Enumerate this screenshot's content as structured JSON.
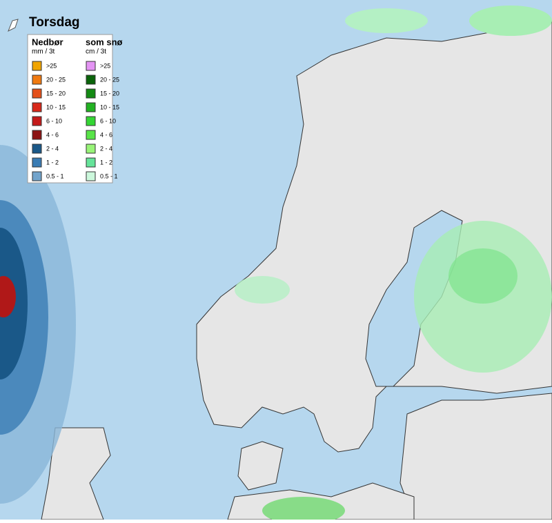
{
  "title": "Torsdag",
  "legend": {
    "columns": [
      {
        "heading": "Nedbør",
        "unit": "mm / 3t",
        "items": [
          {
            "label": ">25",
            "color": "#f0a400"
          },
          {
            "label": "20 - 25",
            "color": "#f07a10"
          },
          {
            "label": "15 - 20",
            "color": "#e4501a"
          },
          {
            "label": "10 - 15",
            "color": "#d8281a"
          },
          {
            "label": "6 - 10",
            "color": "#c41a1a"
          },
          {
            "label": "4 - 6",
            "color": "#8c1414"
          },
          {
            "label": "2 - 4",
            "color": "#1a5888"
          },
          {
            "label": "1 - 2",
            "color": "#3a7cb4"
          },
          {
            "label": "0.5 - 1",
            "color": "#72a4cc"
          }
        ]
      },
      {
        "heading": "som snø",
        "unit": "cm / 3t",
        "items": [
          {
            "label": ">25",
            "color": "#e494f4"
          },
          {
            "label": "20 - 25",
            "color": "#0a640a"
          },
          {
            "label": "15 - 20",
            "color": "#148a14"
          },
          {
            "label": "10 - 15",
            "color": "#22b222"
          },
          {
            "label": "6 - 10",
            "color": "#34d634"
          },
          {
            "label": "4 - 6",
            "color": "#58e448"
          },
          {
            "label": "2 - 4",
            "color": "#98f478"
          },
          {
            "label": "1 - 2",
            "color": "#66e49a"
          },
          {
            "label": "0.5 - 1",
            "color": "#ccf8dc"
          }
        ]
      }
    ]
  }
}
